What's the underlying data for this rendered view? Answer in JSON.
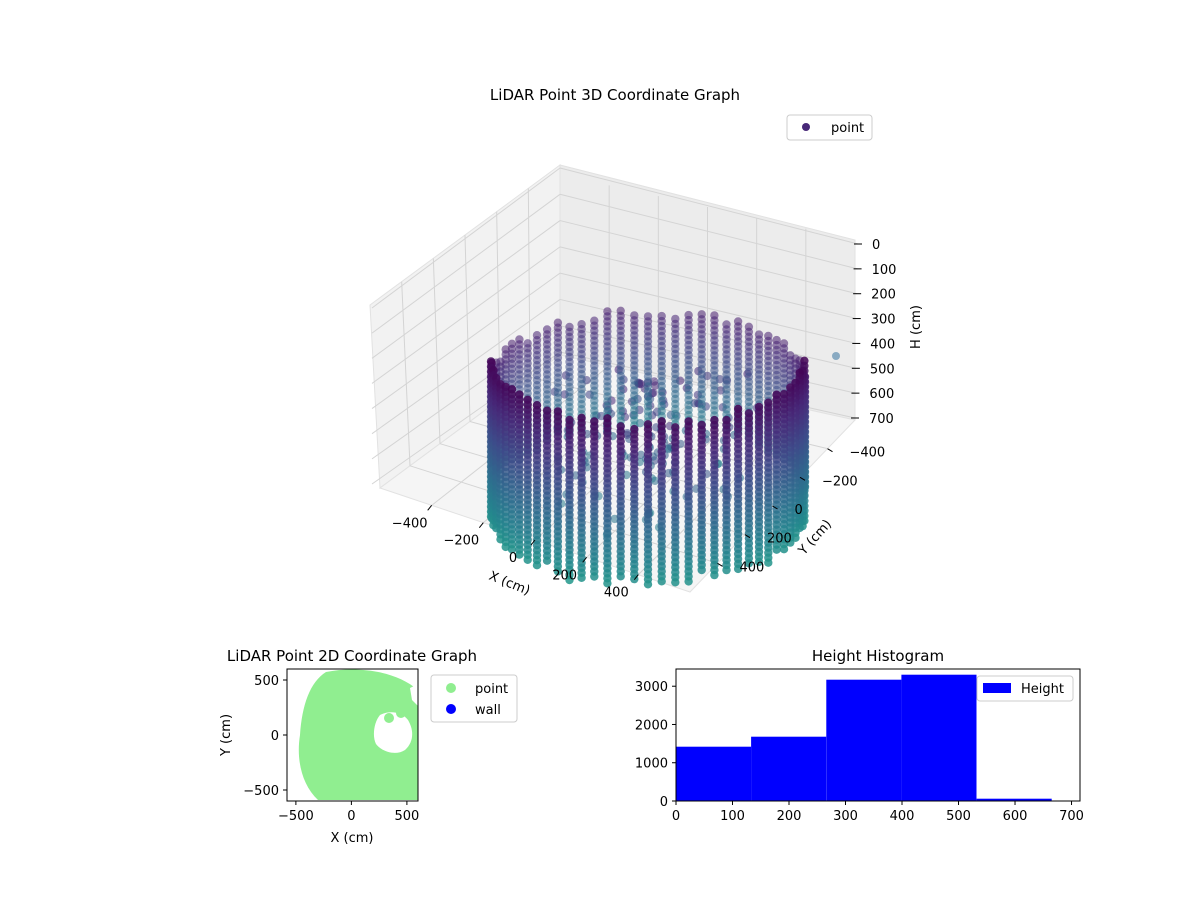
{
  "chart_data": [
    {
      "type": "scatter3d",
      "title": "LiDAR Point 3D Coordinate Graph",
      "xlabel": "X (cm)",
      "ylabel": "Y (cm)",
      "zlabel": "H (cm)",
      "x_ticks": [
        "−400",
        "−200",
        "0",
        "200",
        "400"
      ],
      "y_ticks": [
        "400",
        "200",
        "0",
        "−200",
        "−400"
      ],
      "z_ticks": [
        "0",
        "100",
        "200",
        "300",
        "400",
        "500",
        "600",
        "700"
      ],
      "xlim": [
        -600,
        600
      ],
      "ylim": [
        -600,
        600
      ],
      "zlim": [
        700,
        0
      ],
      "grid": true,
      "legend": {
        "placement": "top-right",
        "entries": [
          {
            "label": "point",
            "color": "#482878"
          }
        ]
      },
      "point_cloud": {
        "shape": "cylindrical wall with interior clutter",
        "radius_cm": 560,
        "height_range_cm": [
          30,
          560
        ],
        "colormap": "viridis (dark purple at top, teal at bottom)"
      }
    },
    {
      "type": "scatter",
      "title": "LiDAR Point 2D Coordinate Graph",
      "xlabel": "X (cm)",
      "ylabel": "Y (cm)",
      "x_ticks": [
        "−500",
        "0",
        "500"
      ],
      "y_ticks": [
        "500",
        "0",
        "−500"
      ],
      "xlim": [
        -580,
        600
      ],
      "ylim": [
        -600,
        600
      ],
      "legend": {
        "placement": "outside-right",
        "entries": [
          {
            "label": "point",
            "color": "#90ee90"
          },
          {
            "label": "wall",
            "color": "#0000ff"
          }
        ]
      },
      "point_cloud": {
        "shape": "filled disk with an inner void",
        "point_color": "#90ee90",
        "approx_extent_cm": {
          "xmin": -480,
          "xmax": 600,
          "ymin": -580,
          "ymax": 580
        }
      }
    },
    {
      "type": "bar",
      "title": "Height Histogram",
      "xlabel": "",
      "ylabel": "",
      "bins": [
        {
          "start": 0,
          "end": 133,
          "count": 1420
        },
        {
          "start": 133,
          "end": 266,
          "count": 1680
        },
        {
          "start": 266,
          "end": 399,
          "count": 3170
        },
        {
          "start": 399,
          "end": 532,
          "count": 3300
        },
        {
          "start": 532,
          "end": 665,
          "count": 60
        }
      ],
      "xlim": [
        0,
        715
      ],
      "ylim": [
        0,
        3450
      ],
      "x_ticks": [
        0,
        100,
        200,
        300,
        400,
        500,
        600,
        700
      ],
      "y_ticks": [
        0,
        1000,
        2000,
        3000
      ],
      "bar_color": "#0000ff",
      "legend": {
        "placement": "top-right",
        "entries": [
          {
            "label": "Height",
            "color": "#0000ff"
          }
        ]
      }
    }
  ]
}
